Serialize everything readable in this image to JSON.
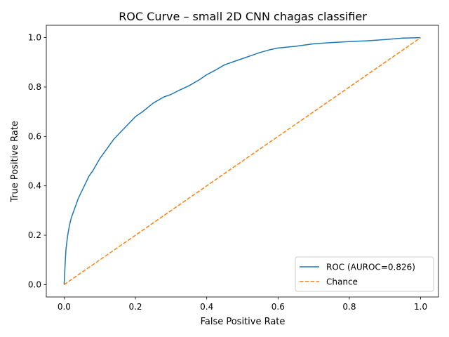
{
  "chart_data": {
    "type": "line",
    "title": "ROC Curve – small 2D CNN chagas classifier",
    "xlabel": "False Positive Rate",
    "ylabel": "True Positive Rate",
    "xlim": [
      -0.05,
      1.05
    ],
    "ylim": [
      -0.05,
      1.05
    ],
    "xticks": [
      0.0,
      0.2,
      0.4,
      0.6,
      0.8,
      1.0
    ],
    "yticks": [
      0.0,
      0.2,
      0.4,
      0.6,
      0.8,
      1.0
    ],
    "xtick_labels": [
      "0.0",
      "0.2",
      "0.4",
      "0.6",
      "0.8",
      "1.0"
    ],
    "ytick_labels": [
      "0.0",
      "0.2",
      "0.4",
      "0.6",
      "0.8",
      "1.0"
    ],
    "grid": false,
    "legend_position": "lower-right",
    "series": [
      {
        "name": "ROC (AUROC=0.826)",
        "color": "#1f77b4",
        "style": "solid",
        "x": [
          0.0,
          0.002,
          0.005,
          0.01,
          0.015,
          0.02,
          0.03,
          0.04,
          0.05,
          0.06,
          0.07,
          0.08,
          0.1,
          0.12,
          0.14,
          0.16,
          0.18,
          0.2,
          0.22,
          0.25,
          0.28,
          0.3,
          0.32,
          0.35,
          0.38,
          0.4,
          0.42,
          0.45,
          0.48,
          0.5,
          0.53,
          0.55,
          0.58,
          0.6,
          0.65,
          0.7,
          0.75,
          0.8,
          0.85,
          0.9,
          0.95,
          1.0
        ],
        "y": [
          0.0,
          0.06,
          0.14,
          0.2,
          0.24,
          0.27,
          0.31,
          0.35,
          0.38,
          0.41,
          0.44,
          0.46,
          0.51,
          0.55,
          0.59,
          0.62,
          0.65,
          0.68,
          0.7,
          0.735,
          0.76,
          0.77,
          0.785,
          0.805,
          0.83,
          0.85,
          0.865,
          0.89,
          0.905,
          0.915,
          0.93,
          0.94,
          0.952,
          0.958,
          0.965,
          0.975,
          0.98,
          0.984,
          0.987,
          0.992,
          0.998,
          1.0
        ]
      },
      {
        "name": "Chance",
        "color": "#ff7f0e",
        "style": "dashed",
        "x": [
          0.0,
          1.0
        ],
        "y": [
          0.0,
          1.0
        ]
      }
    ]
  }
}
